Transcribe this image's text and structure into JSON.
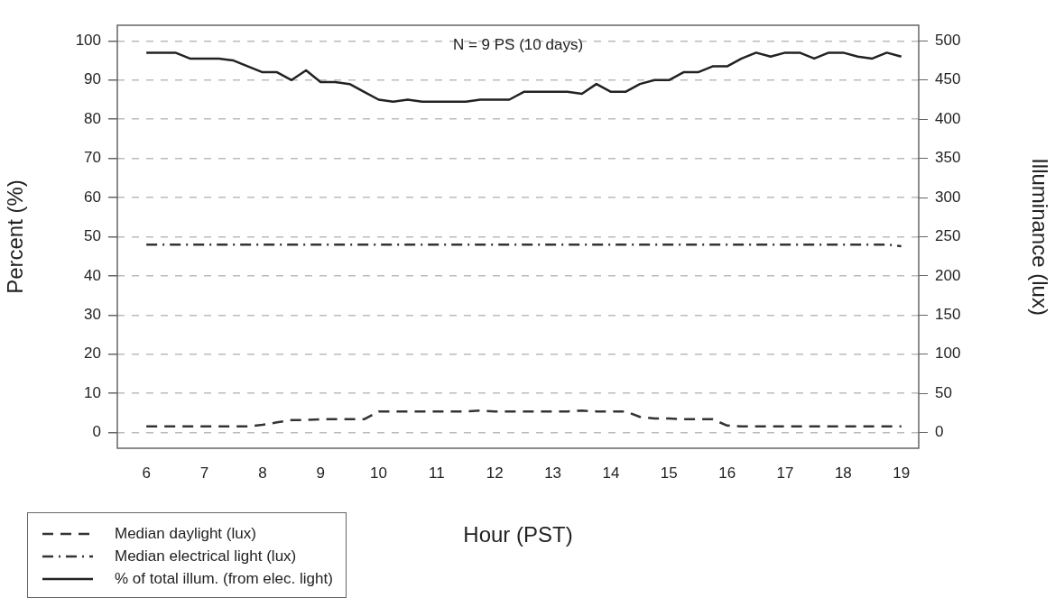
{
  "chart_data": {
    "type": "line",
    "xlabel": "Hour (PST)",
    "ylabel": "Percent (%)",
    "y2label": "Illuminance (lux)",
    "annotations": [
      "N = 9 PS (10 days)"
    ],
    "x": [
      6,
      6.25,
      6.5,
      6.75,
      7,
      7.25,
      7.5,
      7.75,
      8,
      8.25,
      8.5,
      8.75,
      9,
      9.25,
      9.5,
      9.75,
      10,
      10.25,
      10.5,
      10.75,
      11,
      11.25,
      11.5,
      11.75,
      12,
      12.25,
      12.5,
      12.75,
      13,
      13.25,
      13.5,
      13.75,
      14,
      14.25,
      14.5,
      14.75,
      15,
      15.25,
      15.5,
      15.75,
      16,
      16.25,
      16.5,
      16.75,
      17,
      17.25,
      17.5,
      17.75,
      18,
      18.25,
      18.5,
      18.75,
      19
    ],
    "series": [
      {
        "name": "Median daylight (lux)",
        "color": "#333333",
        "axis": "y2",
        "line_style": "dashed",
        "values": [
          8,
          8,
          8,
          8,
          8,
          8,
          8,
          8,
          10,
          13,
          16,
          16,
          17,
          17,
          17,
          17,
          27,
          27,
          27,
          27,
          27,
          27,
          27,
          28,
          27,
          27,
          27,
          27,
          27,
          27,
          28,
          27,
          27,
          27,
          20,
          18,
          18,
          17,
          17,
          17,
          9,
          8,
          8,
          8,
          8,
          8,
          8,
          8,
          8,
          8,
          8,
          8,
          8
        ]
      },
      {
        "name": "Median electrical light (lux)",
        "color": "#333333",
        "axis": "y2",
        "line_style": "dashdot",
        "values": [
          240,
          240,
          240,
          240,
          240,
          240,
          240,
          240,
          240,
          240,
          240,
          240,
          240,
          240,
          240,
          240,
          240,
          240,
          240,
          240,
          240,
          240,
          240,
          240,
          240,
          240,
          240,
          240,
          240,
          240,
          240,
          240,
          240,
          240,
          240,
          240,
          240,
          240,
          240,
          240,
          240,
          240,
          240,
          240,
          240,
          240,
          240,
          240,
          240,
          240,
          240,
          240,
          238
        ]
      },
      {
        "name": "% of total illum. (from elec. light)",
        "color": "#222222",
        "axis": "y",
        "line_style": "solid",
        "values": [
          97,
          97,
          97,
          95.5,
          95.5,
          95.5,
          95,
          93.5,
          92,
          92,
          90,
          92.5,
          89.5,
          89.5,
          89,
          87,
          85,
          84.5,
          85,
          84.5,
          84.5,
          84.5,
          84.5,
          85,
          85,
          85,
          87,
          87,
          87,
          87,
          86.5,
          89,
          87,
          87,
          89,
          90,
          90,
          92,
          92,
          93.5,
          93.5,
          95.5,
          97,
          96,
          97,
          97,
          95.5,
          97,
          97,
          96,
          95.5,
          97,
          96
        ]
      }
    ],
    "xlim": [
      5.5,
      19.3
    ],
    "xticks": [
      6,
      7,
      8,
      9,
      10,
      11,
      12,
      13,
      14,
      15,
      16,
      17,
      18,
      19
    ],
    "ylim": [
      -4,
      104
    ],
    "yticks": [
      0,
      10,
      20,
      30,
      40,
      50,
      60,
      70,
      80,
      90,
      100
    ],
    "y2lim": [
      -20,
      520
    ],
    "y2ticks": [
      0,
      50,
      100,
      150,
      200,
      250,
      300,
      350,
      400,
      450,
      500
    ],
    "grid": "y",
    "legend": "bottom left",
    "marker": "none"
  }
}
